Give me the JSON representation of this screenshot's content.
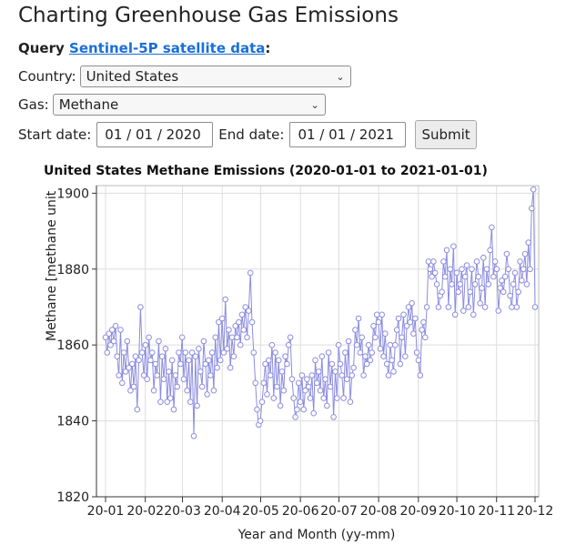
{
  "title": "Charting Greenhouse Gas Emissions",
  "query": {
    "prefix": "Query",
    "link": "Sentinel-5P satellite data",
    "suffix": ":"
  },
  "form": {
    "country_label": "Country:",
    "country_value": "United States",
    "gas_label": "Gas:",
    "gas_value": "Methane",
    "start_label": "Start date:",
    "start_value": "01 / 01 / 2020",
    "end_label": "End date:",
    "end_value": "01 / 01 / 2021",
    "submit_label": "Submit"
  },
  "chart_data": {
    "type": "line",
    "title": "United States Methane Emissions (2020-01-01 to 2021-01-01)",
    "xlabel": "Year and Month (yy-mm)",
    "ylabel": "Methane [methane unit",
    "ylim": [
      1820,
      1902
    ],
    "yticks": [
      1820,
      1840,
      1860,
      1880,
      1900
    ],
    "xticks": [
      "20-01",
      "20-02",
      "20-03",
      "20-04",
      "20-05",
      "20-06",
      "20-07",
      "20-08",
      "20-09",
      "20-10",
      "20-11",
      "20-12"
    ],
    "grid": true,
    "line_color": "#8c8ce0",
    "x_start": "2020-01-01",
    "x_end": "2020-12-01",
    "series": [
      {
        "values": [
          1862,
          1858,
          1863,
          1860,
          1864,
          1861,
          1865,
          1857,
          1852,
          1864,
          1850,
          1858,
          1853,
          1861,
          1854,
          1848,
          1855,
          1849,
          1857,
          1843,
          1856,
          1870,
          1858,
          1852,
          1860,
          1851,
          1862,
          1856,
          1858,
          1848,
          1855,
          1852,
          1861,
          1845,
          1857,
          1851,
          1859,
          1845,
          1853,
          1846,
          1856,
          1843,
          1852,
          1849,
          1858,
          1855,
          1862,
          1851,
          1858,
          1848,
          1856,
          1845,
          1858,
          1836,
          1857,
          1844,
          1859,
          1853,
          1849,
          1861,
          1855,
          1847,
          1856,
          1852,
          1858,
          1848,
          1862,
          1854,
          1866,
          1856,
          1867,
          1858,
          1872,
          1859,
          1864,
          1854,
          1862,
          1857,
          1865,
          1862,
          1866,
          1860,
          1868,
          1864,
          1870,
          1862,
          1869,
          1879,
          1866,
          1858,
          1850,
          1843,
          1839,
          1840,
          1845,
          1850,
          1855,
          1847,
          1856,
          1852,
          1860,
          1846,
          1858,
          1849,
          1856,
          1844,
          1853,
          1848,
          1857,
          1855,
          1860,
          1862,
          1851,
          1846,
          1841,
          1843,
          1850,
          1845,
          1852,
          1843,
          1848,
          1851,
          1849,
          1846,
          1852,
          1842,
          1856,
          1850,
          1853,
          1848,
          1857,
          1846,
          1851,
          1844,
          1858,
          1849,
          1855,
          1841,
          1853,
          1846,
          1860,
          1855,
          1852,
          1846,
          1858,
          1851,
          1861,
          1845,
          1852,
          1854,
          1864,
          1860,
          1867,
          1858,
          1862,
          1852,
          1857,
          1855,
          1860,
          1856,
          1858,
          1865,
          1862,
          1868,
          1866,
          1859,
          1868,
          1857,
          1863,
          1855,
          1852,
          1860,
          1856,
          1853,
          1860,
          1864,
          1867,
          1855,
          1862,
          1868,
          1857,
          1865,
          1870,
          1866,
          1871,
          1863,
          1867,
          1858,
          1856,
          1852,
          1864,
          1866,
          1862,
          1870,
          1882,
          1880,
          1878,
          1882,
          1879,
          1876,
          1870,
          1873,
          1874,
          1882,
          1878,
          1885,
          1870,
          1880,
          1876,
          1886,
          1868,
          1879,
          1874,
          1876,
          1880,
          1869,
          1878,
          1881,
          1870,
          1874,
          1880,
          1868,
          1876,
          1882,
          1878,
          1871,
          1875,
          1883,
          1870,
          1880,
          1876,
          1885,
          1891,
          1878,
          1882,
          1880,
          1869,
          1875,
          1877,
          1874,
          1878,
          1884,
          1880,
          1873,
          1870,
          1876,
          1879,
          1870,
          1874,
          1882,
          1877,
          1880,
          1884,
          1876,
          1887,
          1880,
          1896,
          1901,
          1870
        ]
      }
    ]
  }
}
